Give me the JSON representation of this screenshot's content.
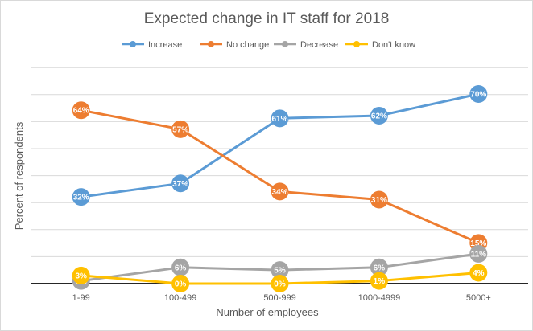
{
  "chart_data": {
    "type": "line",
    "title": "Expected change in IT staff for 2018",
    "xlabel": "Number of employees",
    "ylabel": "Percent of respondents",
    "categories": [
      "1-99",
      "100-499",
      "500-999",
      "1000-4999",
      "5000+"
    ],
    "ylim": [
      0,
      70
    ],
    "grid": true,
    "legend_position": "top",
    "series": [
      {
        "name": "Increase",
        "color": "#5b9bd5",
        "values": [
          32,
          37,
          61,
          62,
          70
        ],
        "labels": [
          "32%",
          "37%",
          "61%",
          "62%",
          "70%"
        ]
      },
      {
        "name": "No change",
        "color": "#ed7d31",
        "values": [
          64,
          57,
          34,
          31,
          15
        ],
        "labels": [
          "64%",
          "57%",
          "34%",
          "31%",
          "15%"
        ]
      },
      {
        "name": "Decrease",
        "color": "#a5a5a5",
        "values": [
          1,
          6,
          5,
          6,
          11
        ],
        "labels": [
          "1%",
          "6%",
          "5%",
          "6%",
          "11%"
        ]
      },
      {
        "name": "Don't know",
        "color": "#ffc000",
        "values": [
          3,
          0,
          0,
          1,
          4
        ],
        "labels": [
          "3%",
          "0%",
          "0%",
          "1%",
          "4%"
        ]
      }
    ]
  }
}
